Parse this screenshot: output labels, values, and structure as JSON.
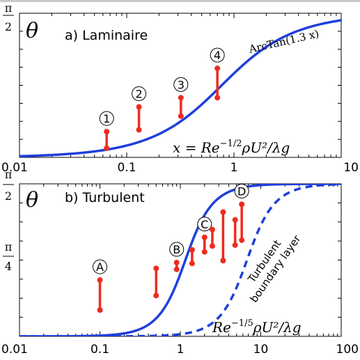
{
  "chart_data": [
    {
      "id": "laminar",
      "type": "scatter",
      "panel_label": "a) Laminaire",
      "ylabel_num": "π",
      "ylabel_den": "2",
      "ylabel_var": "θ",
      "xscale": "log",
      "xlim": [
        0.01,
        10
      ],
      "ylim": [
        0,
        1.5708
      ],
      "x_ticks": [
        "0.01",
        "0.1",
        "1",
        "10"
      ],
      "xlabel_parts": {
        "lhs": "x = Re",
        "exp": "−1/2",
        "rhs": "ρU²/λg"
      },
      "curves": [
        {
          "name": "ArcTan(1.3 x)",
          "style": "solid",
          "label": "ArcTan(1.3 x)"
        }
      ],
      "points": [
        {
          "label": "1",
          "x": 0.065,
          "y_low": 0.1,
          "y_high": 0.28
        },
        {
          "label": "2",
          "x": 0.13,
          "y_low": 0.3,
          "y_high": 0.55
        },
        {
          "label": "3",
          "x": 0.32,
          "y_low": 0.45,
          "y_high": 0.65
        },
        {
          "label": "4",
          "x": 0.7,
          "y_low": 0.65,
          "y_high": 0.97
        }
      ],
      "colors": {
        "curve": "#1f3fdc",
        "points": "#ee2b1f"
      }
    },
    {
      "id": "turbulent",
      "type": "scatter",
      "panel_label": "b) Turbulent",
      "ylabel_num": "π",
      "ylabel_den": "2",
      "ylabel_var": "θ",
      "mid_tick_num": "π",
      "mid_tick_den": "4",
      "xscale": "log",
      "xlim": [
        0.01,
        100
      ],
      "ylim": [
        0,
        1.5708
      ],
      "x_ticks": [
        "0.01",
        "0.1",
        "1",
        "10",
        "100"
      ],
      "xlabel_parts": {
        "lhs": "Re",
        "exp": "−1/5",
        "rhs": "ρU²/λg"
      },
      "curves": [
        {
          "name": "main",
          "style": "solid",
          "label": ""
        },
        {
          "name": "Turbulent boundary layer",
          "style": "dashed",
          "label": "Turbulent boundary layer"
        }
      ],
      "curve_label_lines": [
        "Turbulent",
        "boundary layer"
      ],
      "points": [
        {
          "label": "A",
          "x": 0.1,
          "y_low": 0.27,
          "y_high": 0.58
        },
        {
          "label": "",
          "x": 0.5,
          "y_low": 0.42,
          "y_high": 0.7
        },
        {
          "label": "B",
          "x": 0.9,
          "y_low": 0.69,
          "y_high": 0.76
        },
        {
          "label": "",
          "x": 1.4,
          "y_low": 0.75,
          "y_high": 0.89
        },
        {
          "label": "C",
          "x": 2.0,
          "y_low": 0.87,
          "y_high": 1.02
        },
        {
          "label": "",
          "x": 2.5,
          "y_low": 0.93,
          "y_high": 1.1
        },
        {
          "label": "",
          "x": 3.4,
          "y_low": 0.78,
          "y_high": 1.28
        },
        {
          "label": "",
          "x": 4.8,
          "y_low": 0.94,
          "y_high": 1.2
        },
        {
          "label": "D",
          "x": 5.8,
          "y_low": 0.99,
          "y_high": 1.36
        }
      ],
      "colors": {
        "curve": "#1f3fdc",
        "points": "#ee2b1f"
      }
    }
  ]
}
